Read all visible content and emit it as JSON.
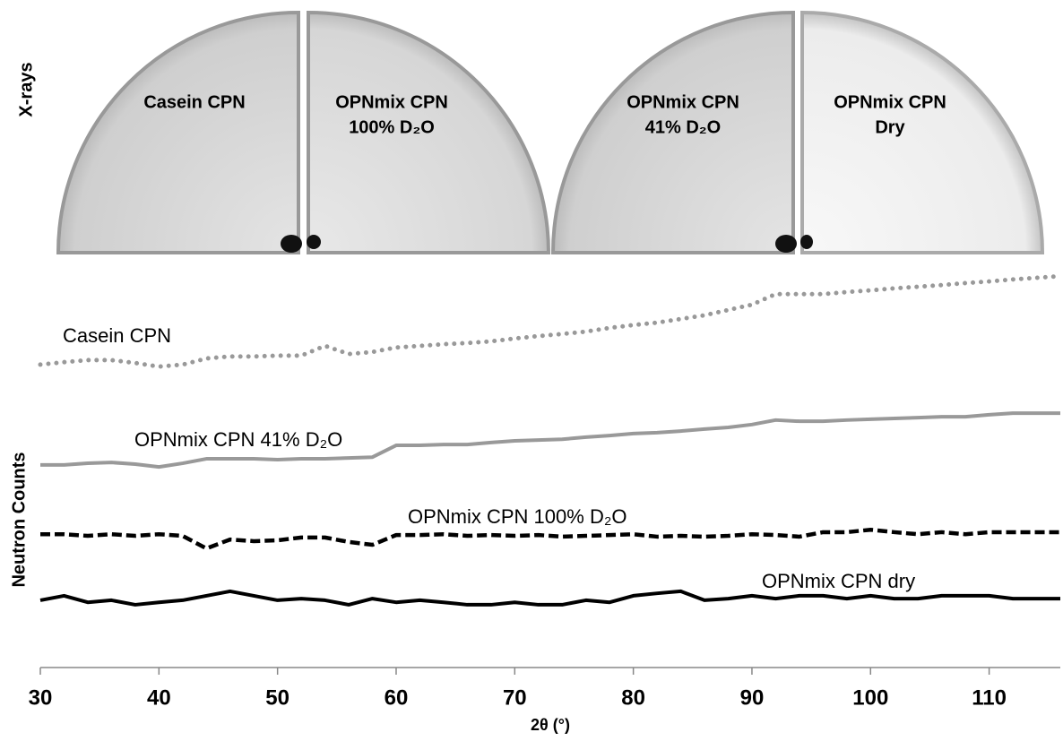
{
  "xray_label": "X-rays",
  "xray_panels": [
    {
      "lines": [
        "Casein CPN"
      ]
    },
    {
      "lines": [
        "OPNmix CPN",
        "100% D₂O"
      ]
    },
    {
      "lines": [
        "OPNmix CPN",
        "41% D₂O"
      ]
    },
    {
      "lines": [
        "OPNmix CPN",
        "Dry"
      ]
    }
  ],
  "chart_data": {
    "type": "line",
    "xlabel": "2θ (°)",
    "ylabel": "Neutron Counts",
    "xlim": [
      30,
      116
    ],
    "xticks": [
      30,
      40,
      50,
      60,
      70,
      80,
      90,
      100,
      110
    ],
    "ylim": [
      0,
      100
    ],
    "x": [
      30,
      32,
      34,
      36,
      38,
      40,
      42,
      44,
      46,
      48,
      50,
      52,
      54,
      56,
      58,
      60,
      62,
      64,
      66,
      68,
      70,
      72,
      74,
      76,
      78,
      80,
      82,
      84,
      86,
      88,
      90,
      92,
      94,
      96,
      98,
      100,
      102,
      104,
      106,
      108,
      110,
      112,
      114,
      116
    ],
    "series": [
      {
        "name": "Casein CPN",
        "color": "#999999",
        "dash": "dotted",
        "values": [
          74.3,
          74.9,
          75.4,
          75.4,
          74.7,
          73.8,
          74.3,
          75.8,
          76.3,
          76.3,
          76.5,
          76.5,
          78.9,
          76.9,
          77.4,
          78.5,
          78.9,
          79.3,
          79.6,
          80.0,
          80.7,
          81.3,
          81.8,
          82.4,
          83.3,
          84.0,
          84.6,
          85.5,
          86.4,
          87.7,
          89.0,
          91.6,
          91.6,
          91.6,
          92.1,
          92.5,
          93.0,
          93.4,
          93.8,
          94.3,
          94.7,
          95.2,
          95.6,
          96.0
        ]
      },
      {
        "name": "OPNmix CPN 41% D₂O",
        "color": "#999999",
        "dash": "solid",
        "values": [
          49.7,
          49.7,
          50.1,
          50.3,
          49.9,
          49.2,
          50.1,
          51.2,
          51.2,
          51.2,
          51.0,
          51.2,
          51.2,
          51.4,
          51.6,
          54.5,
          54.5,
          54.7,
          54.7,
          55.2,
          55.6,
          55.8,
          56.0,
          56.5,
          56.9,
          57.4,
          57.6,
          58.0,
          58.5,
          58.9,
          59.6,
          60.7,
          60.4,
          60.4,
          60.7,
          60.9,
          61.1,
          61.3,
          61.5,
          61.5,
          62.0,
          62.4,
          62.4,
          62.4
        ]
      },
      {
        "name": "OPNmix CPN 100% D₂O",
        "color": "#000000",
        "dash": "dashed",
        "values": [
          32.7,
          32.7,
          32.3,
          32.7,
          32.3,
          32.7,
          32.3,
          29.2,
          31.4,
          31.0,
          31.2,
          31.9,
          31.9,
          30.8,
          30.1,
          32.5,
          32.5,
          32.7,
          32.3,
          32.5,
          32.3,
          32.5,
          32.1,
          32.3,
          32.5,
          32.7,
          32.1,
          32.3,
          32.1,
          32.3,
          32.7,
          32.5,
          32.1,
          33.2,
          33.2,
          33.8,
          33.2,
          32.7,
          33.2,
          32.7,
          33.2,
          33.2,
          33.2,
          33.2
        ]
      },
      {
        "name": "OPNmix CPN dry",
        "color": "#000000",
        "dash": "solid",
        "values": [
          16.5,
          17.6,
          16.0,
          16.5,
          15.4,
          16.0,
          16.5,
          17.6,
          18.7,
          17.6,
          16.5,
          16.9,
          16.5,
          15.4,
          16.9,
          16.0,
          16.5,
          16.0,
          15.4,
          15.4,
          16.0,
          15.4,
          15.4,
          16.5,
          16.0,
          17.6,
          18.2,
          18.7,
          16.5,
          16.9,
          17.6,
          16.9,
          17.6,
          17.6,
          16.9,
          17.6,
          16.9,
          16.9,
          17.6,
          17.6,
          17.6,
          16.9,
          16.9,
          16.9
        ]
      }
    ]
  }
}
